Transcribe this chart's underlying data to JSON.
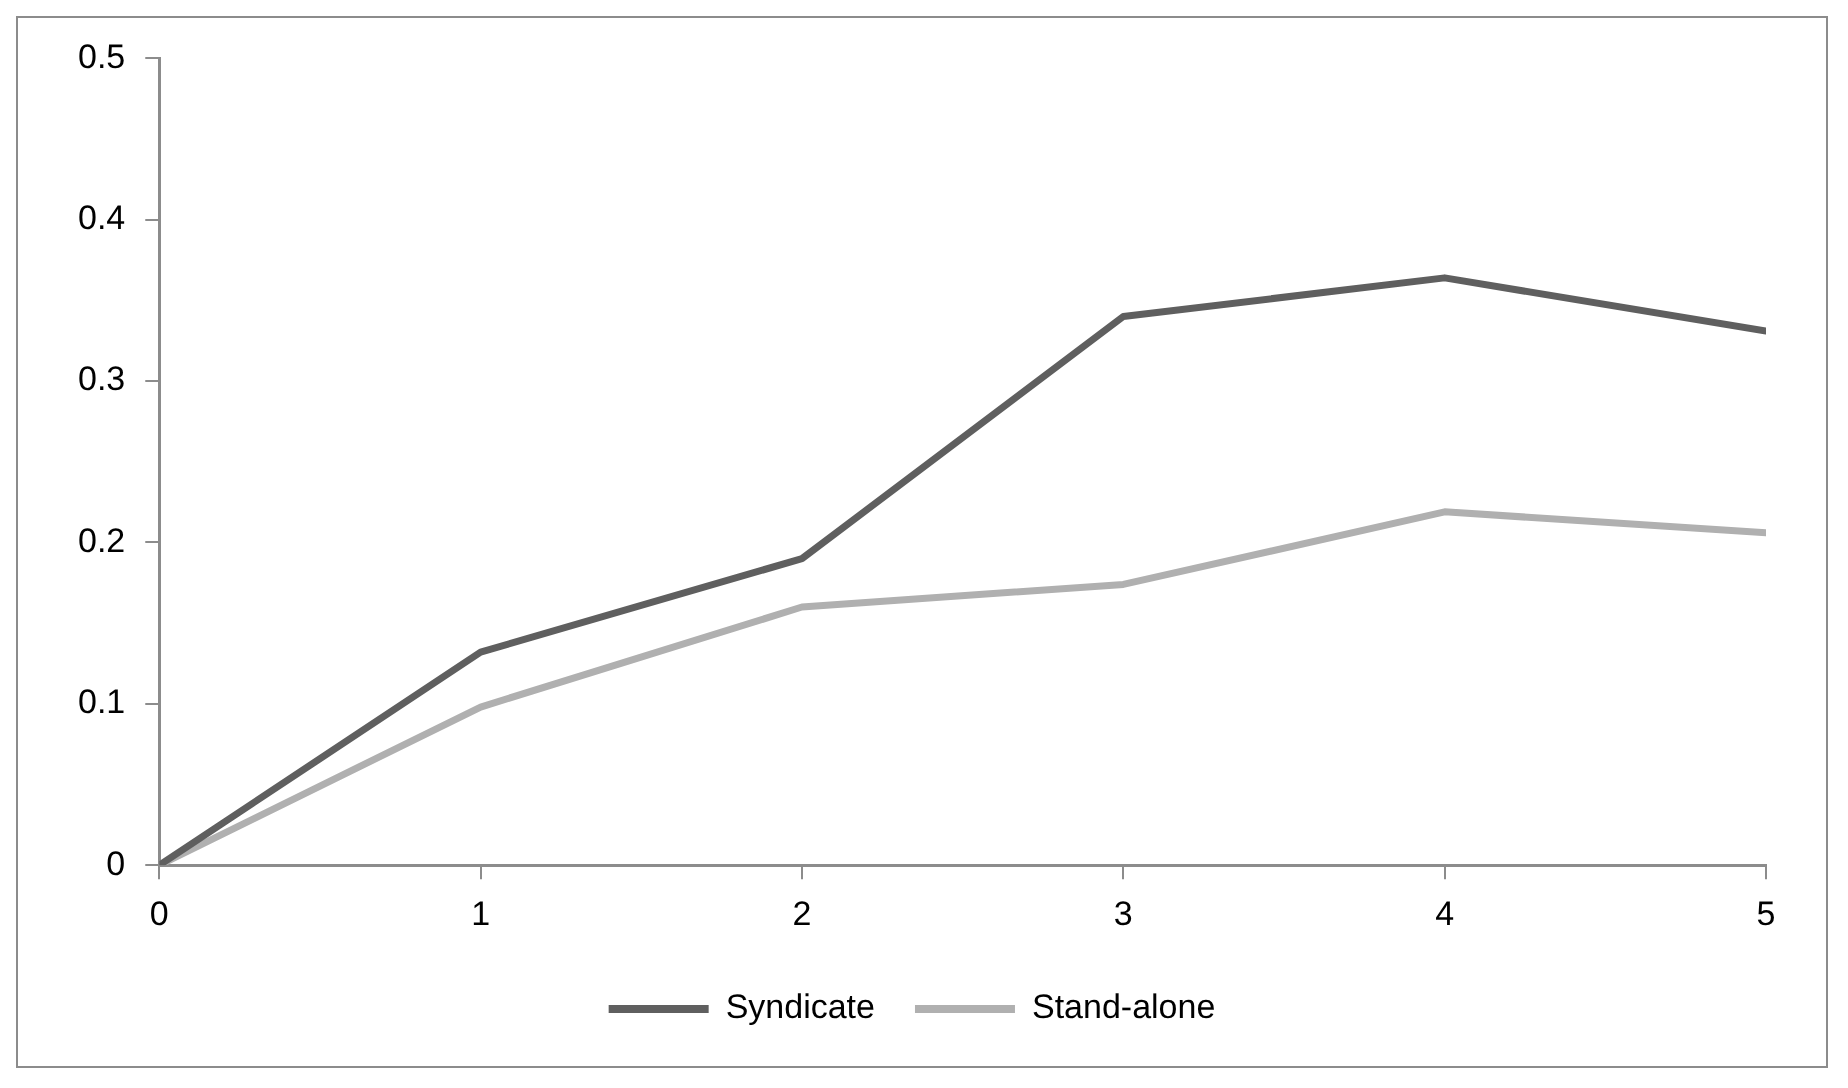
{
  "chart_data": {
    "type": "line",
    "x": [
      0,
      1,
      2,
      3,
      4,
      5
    ],
    "xlim": [
      0,
      5
    ],
    "xticks": [
      0,
      1,
      2,
      3,
      4,
      5
    ],
    "ylim": [
      0,
      0.5
    ],
    "yticks": [
      0,
      0.1,
      0.2,
      0.3,
      0.4,
      0.5
    ],
    "grid": false,
    "legend": "bottom",
    "marker": "none",
    "line_style": "solid",
    "series": [
      {
        "name": "Syndicate",
        "color": "#5f5f5f",
        "values": [
          0,
          0.132,
          0.19,
          0.34,
          0.364,
          0.331
        ]
      },
      {
        "name": "Stand-alone",
        "color": "#b0b0b0",
        "values": [
          0,
          0.098,
          0.16,
          0.174,
          0.219,
          0.206
        ]
      }
    ]
  }
}
